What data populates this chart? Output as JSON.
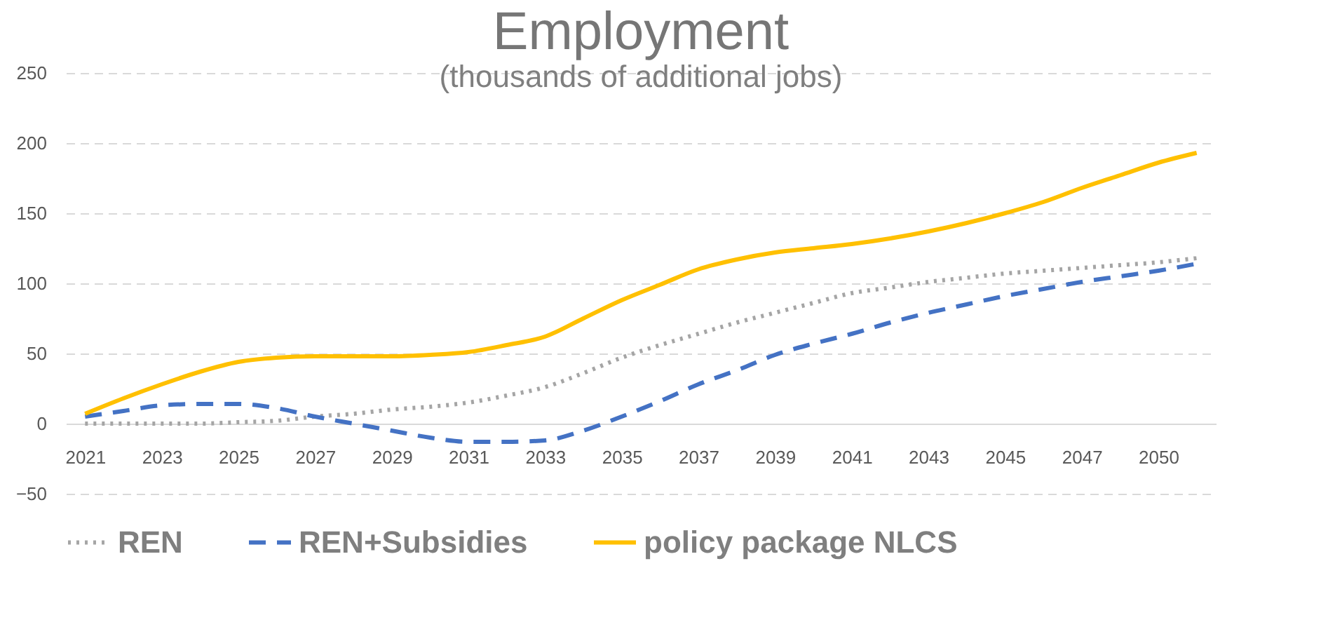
{
  "chart_data": {
    "type": "line",
    "title": "Employment",
    "subtitle": "(thousands of additional jobs)",
    "categories": [
      "2021",
      null,
      "2023",
      null,
      "2025",
      null,
      "2027",
      null,
      "2029",
      null,
      "2031",
      null,
      "2033",
      null,
      "2035",
      null,
      "2037",
      null,
      "2039",
      null,
      "2041",
      null,
      "2043",
      null,
      "2045",
      null,
      "2047",
      null,
      "2050",
      null
    ],
    "series": [
      {
        "name": "REN",
        "color": "#a5a5a5",
        "line_style": "dotted",
        "values": [
          0,
          0,
          0,
          0,
          1,
          2,
          5,
          7,
          10,
          12,
          15,
          20,
          26,
          36,
          47,
          56,
          64,
          72,
          79,
          86,
          93,
          97,
          101,
          104,
          107,
          109,
          111,
          113,
          115,
          118
        ]
      },
      {
        "name": "REN+Subsidies",
        "color": "#4472c4",
        "line_style": "dashed",
        "values": [
          5,
          9,
          13,
          14,
          14,
          11,
          5,
          0,
          -5,
          -10,
          -13,
          -13,
          -12,
          -5,
          5,
          16,
          28,
          38,
          49,
          57,
          64,
          72,
          79,
          85,
          91,
          96,
          101,
          105,
          109,
          114
        ]
      },
      {
        "name": "policy package NLCS",
        "color": "#ffc000",
        "line_style": "solid",
        "values": [
          7,
          18,
          28,
          37,
          44,
          47,
          48,
          48,
          48,
          49,
          51,
          56,
          62,
          75,
          88,
          99,
          110,
          117,
          122,
          125,
          128,
          132,
          137,
          143,
          150,
          158,
          168,
          177,
          186,
          193
        ]
      }
    ],
    "ylim": [
      -50,
      250
    ],
    "yticks": [
      -50,
      0,
      50,
      100,
      150,
      200,
      250
    ],
    "grid": "y",
    "legend": "bottom"
  }
}
